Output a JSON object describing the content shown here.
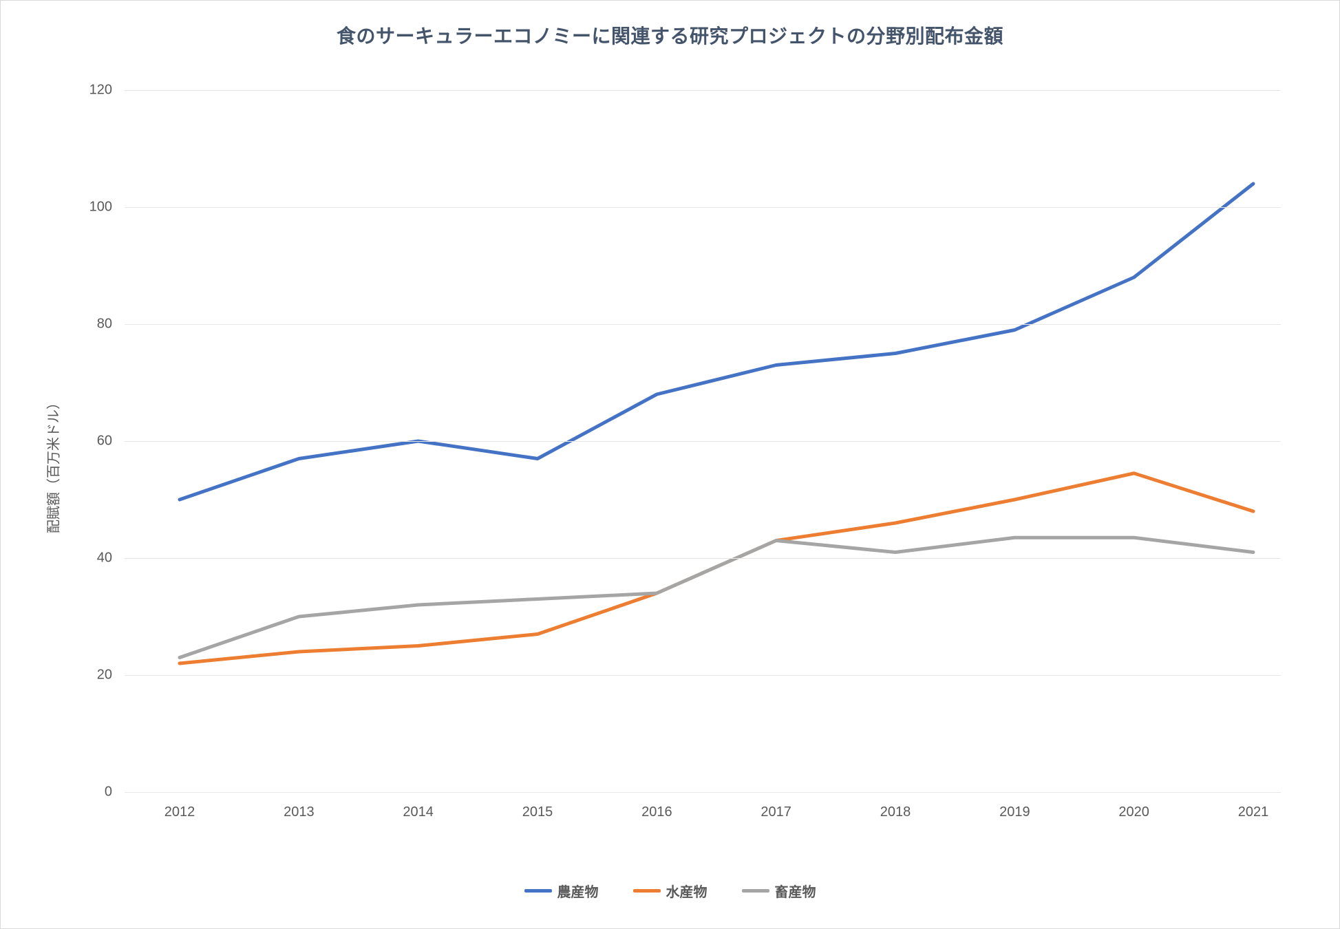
{
  "chart": {
    "type": "line",
    "title": "食のサーキュラーエコノミーに関連する研究プロジェクトの分野別配布金額",
    "title_color": "#44546a",
    "title_fontsize": 28,
    "background_color": "#ffffff",
    "border_color": "#d9d9d9",
    "grid_color": "#e6e6e6",
    "tick_label_color": "#595959",
    "tick_fontsize": 20,
    "y_axis": {
      "title": "配賦額（百万米ドル）",
      "min": 0,
      "max": 120,
      "tick_step": 20,
      "ticks": [
        0,
        20,
        40,
        60,
        80,
        100,
        120
      ]
    },
    "x_axis": {
      "categories": [
        "2012",
        "2013",
        "2014",
        "2015",
        "2016",
        "2017",
        "2018",
        "2019",
        "2020",
        "2021"
      ]
    },
    "line_width": 5,
    "series": [
      {
        "name": "農産物",
        "color": "#4472c4",
        "values": [
          50,
          57,
          60,
          57,
          68,
          73,
          75,
          79,
          88,
          104
        ]
      },
      {
        "name": "水産物",
        "color": "#ed7d31",
        "values": [
          22,
          24,
          25,
          27,
          34,
          43,
          46,
          50,
          54.5,
          48
        ]
      },
      {
        "name": "畜産物",
        "color": "#a5a5a5",
        "values": [
          23,
          30,
          32,
          33,
          34,
          43,
          41,
          43.5,
          43.5,
          41
        ]
      }
    ]
  }
}
